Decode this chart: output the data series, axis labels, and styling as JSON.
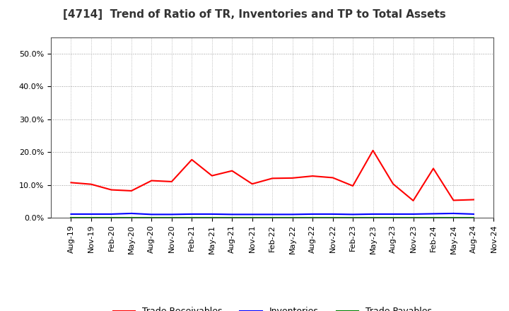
{
  "title": "[4714]  Trend of Ratio of TR, Inventories and TP to Total Assets",
  "x_labels": [
    "Aug-19",
    "Nov-19",
    "Feb-20",
    "May-20",
    "Aug-20",
    "Nov-20",
    "Feb-21",
    "May-21",
    "Aug-21",
    "Nov-21",
    "Feb-22",
    "May-22",
    "Aug-22",
    "Nov-22",
    "Feb-23",
    "May-23",
    "Aug-23",
    "Nov-23",
    "Feb-24",
    "May-24",
    "Aug-24",
    "Nov-24"
  ],
  "trade_receivables": [
    0.107,
    0.102,
    0.085,
    0.082,
    0.113,
    0.11,
    0.177,
    0.128,
    0.143,
    0.103,
    0.12,
    0.121,
    0.127,
    0.122,
    0.097,
    0.205,
    0.103,
    0.052,
    0.15,
    0.053,
    0.055,
    null
  ],
  "inventories": [
    0.011,
    0.011,
    0.011,
    0.013,
    0.01,
    0.01,
    0.011,
    0.011,
    0.01,
    0.01,
    0.01,
    0.01,
    0.011,
    0.011,
    0.01,
    0.011,
    0.011,
    0.011,
    0.012,
    0.013,
    0.011,
    null
  ],
  "trade_payables": [
    0.001,
    0.001,
    0.001,
    0.001,
    0.001,
    0.001,
    0.001,
    0.001,
    0.001,
    0.001,
    0.001,
    0.001,
    0.001,
    0.001,
    0.001,
    0.001,
    0.001,
    0.001,
    0.001,
    0.001,
    0.001,
    null
  ],
  "tr_color": "#FF0000",
  "inv_color": "#0000FF",
  "tp_color": "#008000",
  "ylim": [
    0.0,
    0.55
  ],
  "yticks": [
    0.0,
    0.1,
    0.2,
    0.3,
    0.4,
    0.5
  ],
  "ytick_labels": [
    "0.0%",
    "10.0%",
    "20.0%",
    "30.0%",
    "40.0%",
    "50.0%"
  ],
  "background_color": "#FFFFFF",
  "grid_color": "#999999",
  "legend_labels": [
    "Trade Receivables",
    "Inventories",
    "Trade Payables"
  ],
  "title_fontsize": 11,
  "tick_fontsize": 8,
  "ytick_fontsize": 8
}
